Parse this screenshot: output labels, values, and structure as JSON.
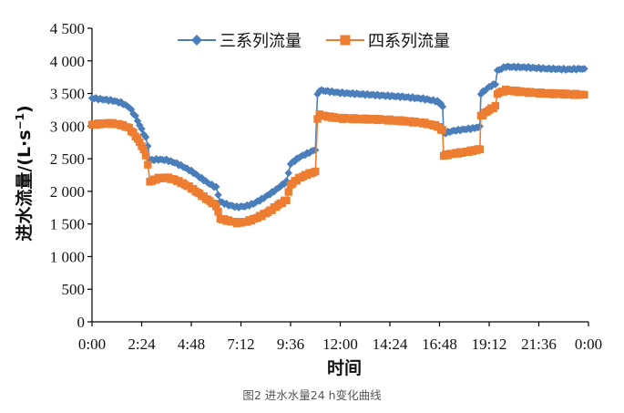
{
  "caption": "图2 进水水量24 h变化曲线",
  "chart_data": {
    "type": "line",
    "title": "",
    "xlabel": "时间",
    "ylabel_main": "进水流量/(L·s",
    "ylabel_sup": "−1",
    "ylabel_tail": ")",
    "x_unit": "hour",
    "xlim": [
      0,
      24
    ],
    "ylim": [
      0,
      4500
    ],
    "xticks": [
      {
        "value": 0,
        "label": "0:00"
      },
      {
        "value": 2.4,
        "label": "2:24"
      },
      {
        "value": 4.8,
        "label": "4:48"
      },
      {
        "value": 7.2,
        "label": "7:12"
      },
      {
        "value": 9.6,
        "label": "9:36"
      },
      {
        "value": 12,
        "label": "12:00"
      },
      {
        "value": 14.4,
        "label": "14:24"
      },
      {
        "value": 16.8,
        "label": "16:48"
      },
      {
        "value": 19.2,
        "label": "19:12"
      },
      {
        "value": 21.6,
        "label": "21:36"
      },
      {
        "value": 24,
        "label": "0:00"
      }
    ],
    "yticks": [
      {
        "value": 0,
        "label": "0"
      },
      {
        "value": 500,
        "label": "500"
      },
      {
        "value": 1000,
        "label": "1 000"
      },
      {
        "value": 1500,
        "label": "1 500"
      },
      {
        "value": 2000,
        "label": "2 000"
      },
      {
        "value": 2500,
        "label": "2 500"
      },
      {
        "value": 3000,
        "label": "3 000"
      },
      {
        "value": 3500,
        "label": "3 500"
      },
      {
        "value": 4000,
        "label": "4 000"
      },
      {
        "value": 4500,
        "label": "4 500"
      }
    ],
    "grid": false,
    "legend": "top",
    "series": [
      {
        "name": "三系列流量",
        "color": "#4a7ebb",
        "marker": "diamond",
        "points": [
          [
            0.0,
            3430
          ],
          [
            0.5,
            3410
          ],
          [
            1.0,
            3390
          ],
          [
            1.4,
            3360
          ],
          [
            1.8,
            3290
          ],
          [
            2.1,
            3150
          ],
          [
            2.4,
            2950
          ],
          [
            2.6,
            2820
          ],
          [
            2.7,
            2700
          ],
          [
            2.8,
            2480
          ],
          [
            3.2,
            2490
          ],
          [
            3.6,
            2480
          ],
          [
            4.0,
            2440
          ],
          [
            4.4,
            2380
          ],
          [
            4.8,
            2310
          ],
          [
            5.2,
            2220
          ],
          [
            5.6,
            2130
          ],
          [
            6.0,
            2060
          ],
          [
            6.2,
            1840
          ],
          [
            6.6,
            1790
          ],
          [
            7.0,
            1760
          ],
          [
            7.4,
            1770
          ],
          [
            7.8,
            1810
          ],
          [
            8.2,
            1880
          ],
          [
            8.6,
            1960
          ],
          [
            9.0,
            2050
          ],
          [
            9.4,
            2150
          ],
          [
            9.6,
            2420
          ],
          [
            10.0,
            2520
          ],
          [
            10.4,
            2580
          ],
          [
            10.8,
            2640
          ],
          [
            10.9,
            3480
          ],
          [
            11.0,
            3550
          ],
          [
            11.5,
            3530
          ],
          [
            12.0,
            3510
          ],
          [
            13.0,
            3490
          ],
          [
            14.0,
            3470
          ],
          [
            15.0,
            3450
          ],
          [
            16.0,
            3420
          ],
          [
            16.7,
            3380
          ],
          [
            16.95,
            3310
          ],
          [
            17.0,
            2890
          ],
          [
            17.5,
            2930
          ],
          [
            18.0,
            2950
          ],
          [
            18.5,
            2970
          ],
          [
            18.75,
            2990
          ],
          [
            18.8,
            3500
          ],
          [
            19.2,
            3600
          ],
          [
            19.5,
            3650
          ],
          [
            19.6,
            3850
          ],
          [
            20.0,
            3910
          ],
          [
            21.0,
            3900
          ],
          [
            22.0,
            3880
          ],
          [
            23.0,
            3870
          ],
          [
            23.8,
            3880
          ]
        ]
      },
      {
        "name": "四系列流量",
        "color": "#ed7d31",
        "marker": "square",
        "points": [
          [
            0.0,
            3020
          ],
          [
            0.5,
            3040
          ],
          [
            1.0,
            3040
          ],
          [
            1.4,
            3020
          ],
          [
            1.8,
            2970
          ],
          [
            2.1,
            2850
          ],
          [
            2.4,
            2700
          ],
          [
            2.6,
            2560
          ],
          [
            2.7,
            2400
          ],
          [
            2.8,
            2150
          ],
          [
            3.2,
            2200
          ],
          [
            3.6,
            2210
          ],
          [
            4.0,
            2180
          ],
          [
            4.4,
            2120
          ],
          [
            4.8,
            2050
          ],
          [
            5.2,
            1960
          ],
          [
            5.6,
            1870
          ],
          [
            6.0,
            1780
          ],
          [
            6.2,
            1580
          ],
          [
            6.6,
            1550
          ],
          [
            7.0,
            1520
          ],
          [
            7.4,
            1530
          ],
          [
            7.8,
            1570
          ],
          [
            8.2,
            1630
          ],
          [
            8.6,
            1700
          ],
          [
            9.0,
            1790
          ],
          [
            9.4,
            1870
          ],
          [
            9.6,
            2100
          ],
          [
            10.0,
            2200
          ],
          [
            10.4,
            2260
          ],
          [
            10.8,
            2300
          ],
          [
            10.9,
            3120
          ],
          [
            11.0,
            3170
          ],
          [
            11.5,
            3140
          ],
          [
            12.0,
            3120
          ],
          [
            13.0,
            3110
          ],
          [
            14.0,
            3100
          ],
          [
            15.0,
            3080
          ],
          [
            16.0,
            3050
          ],
          [
            16.7,
            3000
          ],
          [
            16.95,
            2930
          ],
          [
            17.0,
            2550
          ],
          [
            17.5,
            2580
          ],
          [
            18.0,
            2600
          ],
          [
            18.5,
            2630
          ],
          [
            18.75,
            2650
          ],
          [
            18.8,
            3150
          ],
          [
            19.2,
            3250
          ],
          [
            19.5,
            3300
          ],
          [
            19.6,
            3500
          ],
          [
            20.0,
            3550
          ],
          [
            21.0,
            3520
          ],
          [
            22.0,
            3500
          ],
          [
            23.0,
            3490
          ],
          [
            23.8,
            3480
          ]
        ]
      }
    ]
  }
}
